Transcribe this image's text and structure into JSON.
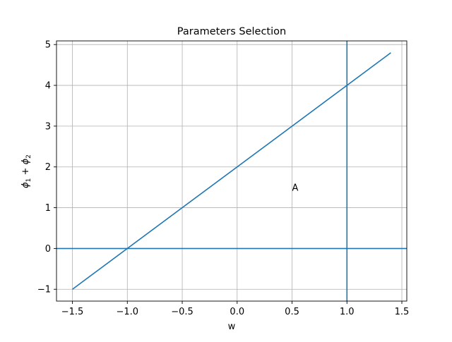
{
  "chart_data": {
    "type": "line",
    "title": "Parameters Selection",
    "xlabel": "w",
    "ylabel_base": "ϕ",
    "ylabel_sub1": "1",
    "ylabel_plus": " + ",
    "ylabel_sub2": "2",
    "xlim": [
      -1.645,
      1.545
    ],
    "ylim": [
      -1.29,
      5.09
    ],
    "grid": true,
    "xticks": [
      -1.5,
      -1.0,
      -0.5,
      0.0,
      0.5,
      1.0,
      1.5
    ],
    "xtick_labels": [
      "−1.5",
      "−1.0",
      "−0.5",
      "0.0",
      "0.5",
      "1.0",
      "1.5"
    ],
    "yticks": [
      -1,
      0,
      1,
      2,
      3,
      4,
      5
    ],
    "ytick_labels": [
      "−1",
      "0",
      "1",
      "2",
      "3",
      "4",
      "5"
    ],
    "series": [
      {
        "x": [
          -1.5,
          1.4
        ],
        "y": [
          -1.0,
          4.8
        ]
      }
    ],
    "hlines": [
      0
    ],
    "vlines": [
      1.0
    ],
    "annotations": [
      {
        "text": "A",
        "x": 0.5,
        "y": 1.5
      }
    ],
    "colors": {
      "line": "#1f77b4",
      "grid": "#b0b0b0",
      "axes": "#000000"
    }
  }
}
